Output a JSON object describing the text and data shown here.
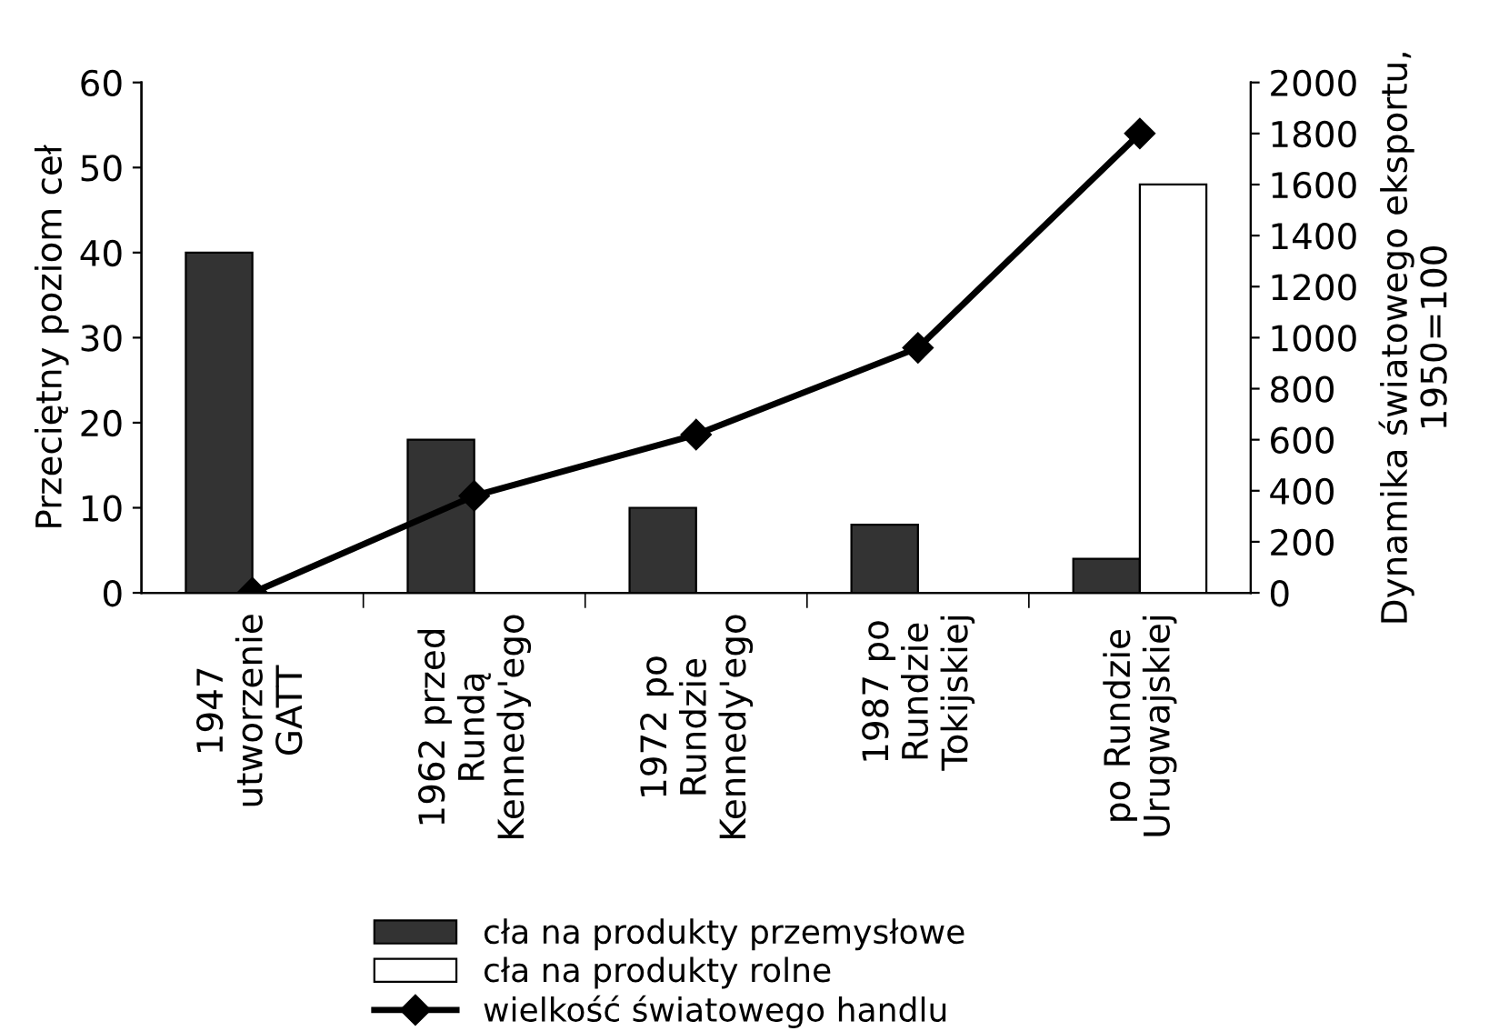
{
  "chart_data": {
    "type": "bar",
    "ylabel": "Przeciętny poziom ceł",
    "y2label": "Dynamika światowego eksportu,\n1950=100",
    "categories": [
      "1947\nutworzenie\nGATT",
      "1962 przed\nRundą\nKennedy'ego",
      "1972 po\nRundzie\nKennedy'ego",
      "1987 po\nRundzie\nTokijskiej",
      "po Rundzie\nUrugwajskiej"
    ],
    "series": [
      {
        "name": "cła na produkty przemysłowe",
        "color": "#333333",
        "values": [
          40,
          18,
          10,
          8,
          4
        ]
      },
      {
        "name": "cła na produkty rolne",
        "color": "#ffffff",
        "values": [
          null,
          null,
          null,
          null,
          48
        ]
      },
      {
        "name": "wielkość światowego handlu",
        "type": "line",
        "axis": "y2",
        "color": "#000000",
        "marker": "diamond",
        "values": [
          0,
          380,
          620,
          960,
          1800
        ]
      }
    ],
    "ylim": [
      0,
      60
    ],
    "yticks": [
      0,
      10,
      20,
      30,
      40,
      50,
      60
    ],
    "y2lim": [
      0,
      2000
    ],
    "y2ticks": [
      0,
      200,
      400,
      600,
      800,
      1000,
      1200,
      1400,
      1600,
      1800,
      2000
    ],
    "grid": false,
    "legend": "bottom"
  }
}
